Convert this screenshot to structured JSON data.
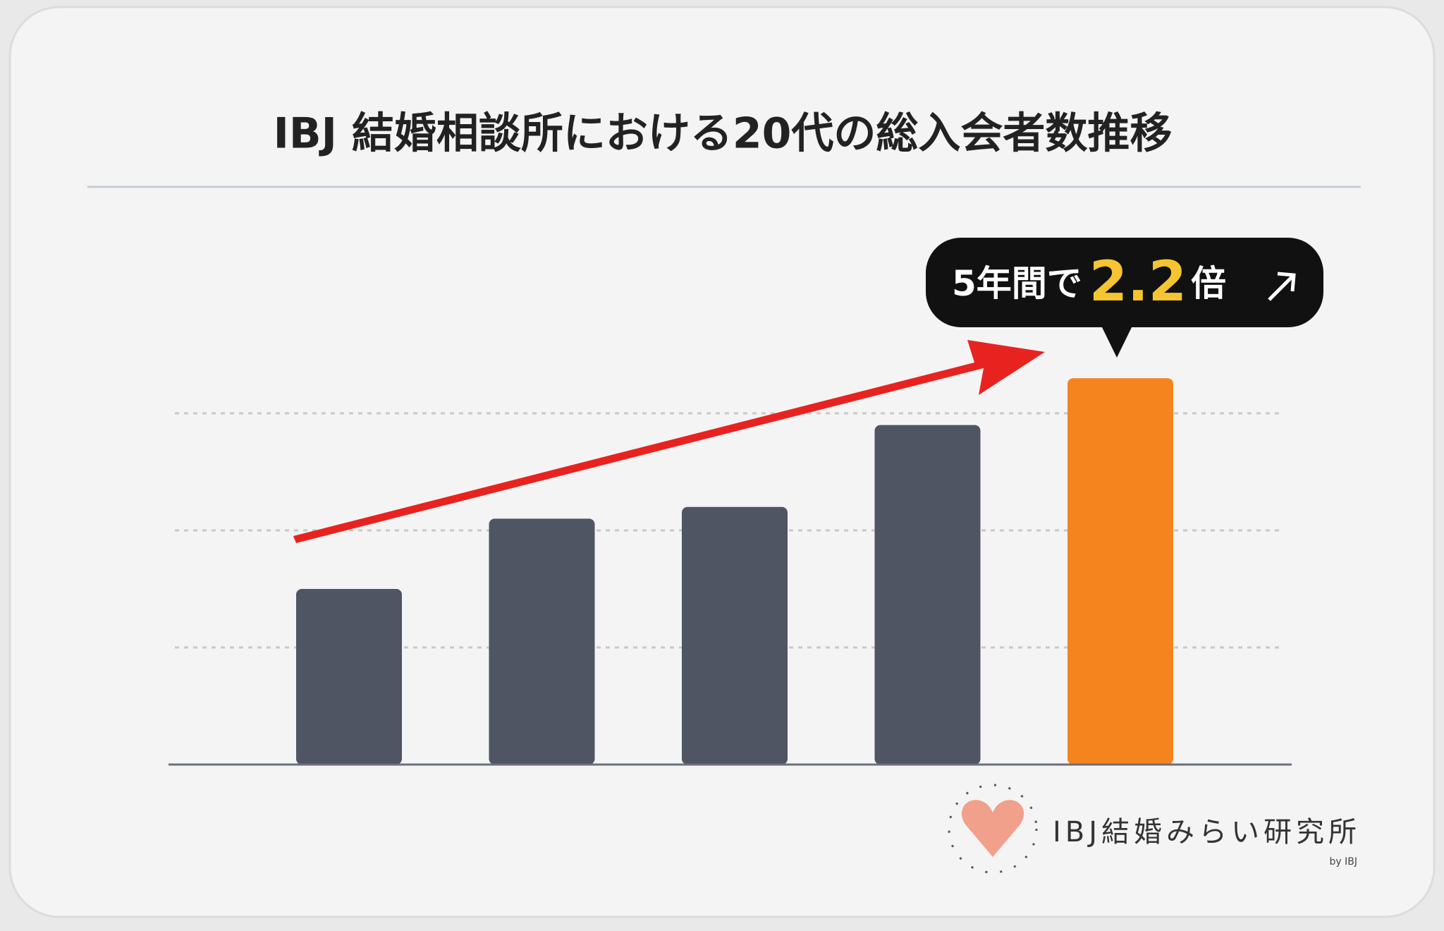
{
  "chart_data": {
    "type": "bar",
    "title": "IBJ 結婚相談所における20代の総入会者数推移",
    "categories": [
      null,
      null,
      null,
      null,
      null
    ],
    "values": [
      1.5,
      2.1,
      2.2,
      2.9,
      3.3
    ],
    "colors": [
      "#4f5563",
      "#4f5563",
      "#4f5563",
      "#4f5563",
      "#f5841f"
    ],
    "ylim": [
      0,
      4
    ],
    "yticks": [
      0,
      1,
      2,
      3
    ],
    "grid": true,
    "annotation": {
      "prefix": "5年間で",
      "highlight": "2.2",
      "suffix": "倍"
    },
    "logo": {
      "name": "IBJ結婚みらい研究所",
      "by": "by IBJ"
    }
  }
}
